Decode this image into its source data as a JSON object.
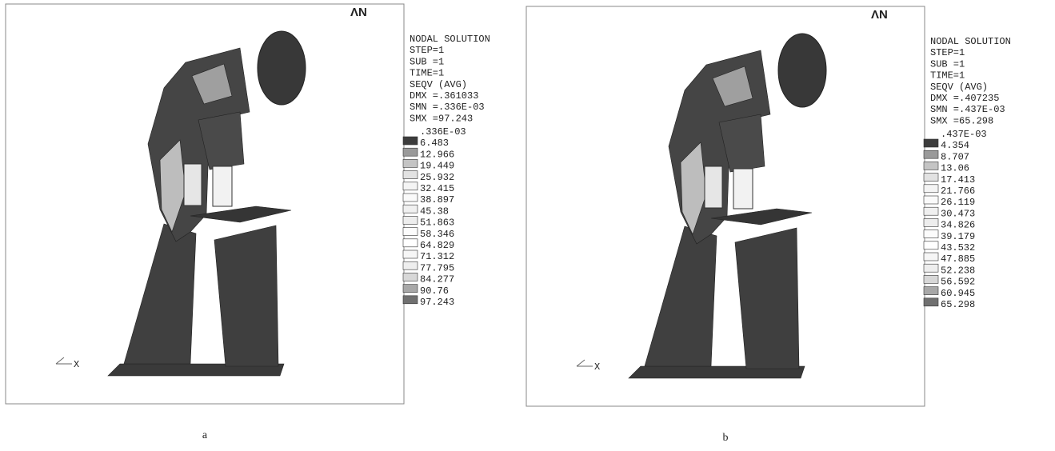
{
  "panels": [
    {
      "logo": "ΛN",
      "header": [
        "NODAL SOLUTION",
        "STEP=1",
        "SUB =1",
        "TIME=1",
        "SEQV     (AVG)",
        "DMX =.361033",
        "SMN =.336E-03",
        "SMX =97.243"
      ],
      "legend": {
        "labels": [
          ".336E-03",
          "6.483",
          "12.966",
          "19.449",
          "25.932",
          "32.415",
          "38.897",
          "45.38",
          "51.863",
          "58.346",
          "64.829",
          "71.312",
          "77.795",
          "84.277",
          "90.76",
          "97.243"
        ],
        "colors": [
          "#3c3c3c",
          "#9a9a9a",
          "#c4c4c4",
          "#e2e2e2",
          "#f4f4f4",
          "#fafafa",
          "#f0f0f0",
          "#ededed",
          "#fcfcfc",
          "#ffffff",
          "#f6f6f6",
          "#eeeeee",
          "#d8d8d8",
          "#a8a8a8",
          "#707070"
        ]
      },
      "triad": "X",
      "caption": "a"
    },
    {
      "logo": "ΛN",
      "header": [
        "NODAL SOLUTION",
        "STEP=1",
        "SUB =1",
        "TIME=1",
        "SEQV     (AVG)",
        "DMX =.407235",
        "SMN =.437E-03",
        "SMX =65.298"
      ],
      "legend": {
        "labels": [
          ".437E-03",
          "4.354",
          "8.707",
          "13.06",
          "17.413",
          "21.766",
          "26.119",
          "30.473",
          "34.826",
          "39.179",
          "43.532",
          "47.885",
          "52.238",
          "56.592",
          "60.945",
          "65.298"
        ],
        "colors": [
          "#3c3c3c",
          "#9a9a9a",
          "#c4c4c4",
          "#e2e2e2",
          "#f4f4f4",
          "#fafafa",
          "#f0f0f0",
          "#ededed",
          "#fcfcfc",
          "#ffffff",
          "#f6f6f6",
          "#eeeeee",
          "#d8d8d8",
          "#a8a8a8",
          "#707070"
        ]
      },
      "triad": "X",
      "caption": "b"
    }
  ]
}
